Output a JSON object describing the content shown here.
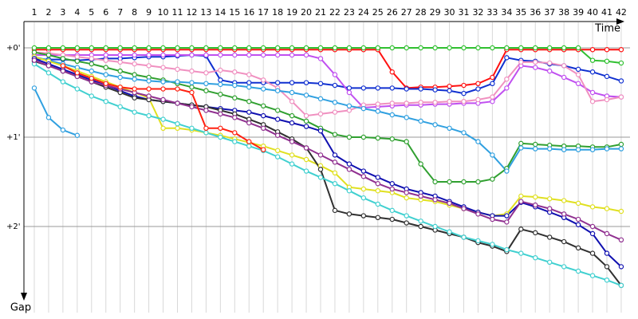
{
  "chart_data": {
    "type": "line",
    "x_label": "Time",
    "y_label": "Gap",
    "y_inverted": true,
    "categories": [
      1,
      2,
      3,
      4,
      5,
      6,
      7,
      8,
      9,
      10,
      11,
      12,
      13,
      14,
      15,
      16,
      17,
      18,
      19,
      20,
      21,
      22,
      23,
      24,
      25,
      26,
      27,
      28,
      29,
      30,
      31,
      32,
      33,
      34,
      35,
      36,
      37,
      38,
      39,
      40,
      41,
      42
    ],
    "ylim": [
      -0.3,
      2.8
    ],
    "yticks": [
      {
        "value": 0,
        "label": "+0'"
      },
      {
        "value": 1,
        "label": "+1'"
      },
      {
        "value": 2,
        "label": "+2'"
      }
    ],
    "grid": true,
    "series": [
      {
        "color": "#ff1010",
        "values": [
          0.02,
          0.02,
          0.02,
          0.02,
          0.02,
          0.02,
          0.02,
          0.02,
          0.02,
          0.02,
          0.02,
          0.02,
          0.02,
          0.02,
          0.02,
          0.02,
          0.02,
          0.02,
          0.02,
          0.02,
          0.02,
          0.02,
          0.02,
          0.02,
          0.02,
          0.27,
          0.45,
          0.44,
          0.44,
          0.43,
          0.42,
          0.4,
          0.33,
          0.02,
          0.02,
          0.02,
          0.02,
          0.02,
          0.02,
          0.02,
          0.02,
          0.02
        ]
      },
      {
        "color": "#30c030",
        "values": [
          0,
          0,
          0,
          0,
          0,
          0,
          0,
          0,
          0,
          0,
          0,
          0,
          0,
          0,
          0,
          0,
          0,
          0,
          0,
          0,
          0,
          0,
          0,
          0,
          0,
          0,
          0,
          0,
          0,
          0,
          0,
          0,
          0,
          0,
          0,
          0,
          0,
          0,
          0,
          0.14,
          0.15,
          0.17
        ]
      },
      {
        "color": "#1030d0",
        "values": [
          0.12,
          0.13,
          0.13,
          0.14,
          0.13,
          0.12,
          0.12,
          0.11,
          0.1,
          0.1,
          0.09,
          0.08,
          0.09,
          0.36,
          0.39,
          0.39,
          0.39,
          0.39,
          0.39,
          0.39,
          0.4,
          0.42,
          0.45,
          0.45,
          0.45,
          0.45,
          0.46,
          0.46,
          0.47,
          0.48,
          0.51,
          0.46,
          0.4,
          0.11,
          0.14,
          0.15,
          0.18,
          0.2,
          0.24,
          0.27,
          0.32,
          0.37
        ]
      },
      {
        "color": "#c050f0",
        "values": [
          0.08,
          0.08,
          0.08,
          0.08,
          0.08,
          0.08,
          0.08,
          0.08,
          0.08,
          0.08,
          0.08,
          0.08,
          0.08,
          0.08,
          0.08,
          0.08,
          0.08,
          0.08,
          0.08,
          0.08,
          0.12,
          0.3,
          0.5,
          0.67,
          0.66,
          0.65,
          0.64,
          0.64,
          0.63,
          0.63,
          0.62,
          0.62,
          0.6,
          0.45,
          0.2,
          0.22,
          0.26,
          0.33,
          0.4,
          0.5,
          0.54,
          0.55
        ]
      },
      {
        "color": "#f090c0",
        "values": [
          0.05,
          0.06,
          0.08,
          0.1,
          0.12,
          0.14,
          0.16,
          0.18,
          0.2,
          0.22,
          0.24,
          0.26,
          0.28,
          0.25,
          0.27,
          0.3,
          0.36,
          0.45,
          0.6,
          0.76,
          0.74,
          0.72,
          0.7,
          0.64,
          0.63,
          0.62,
          0.62,
          0.61,
          0.61,
          0.6,
          0.6,
          0.58,
          0.55,
          0.35,
          0.16,
          0.16,
          0.17,
          0.2,
          0.3,
          0.6,
          0.58,
          0.55
        ]
      },
      {
        "color": "#30a030",
        "values": [
          0.05,
          0.08,
          0.12,
          0.15,
          0.18,
          0.22,
          0.26,
          0.3,
          0.33,
          0.36,
          0.4,
          0.44,
          0.48,
          0.52,
          0.56,
          0.6,
          0.65,
          0.7,
          0.76,
          0.82,
          0.9,
          0.97,
          1.0,
          1.0,
          1.01,
          1.02,
          1.05,
          1.3,
          1.5,
          1.5,
          1.5,
          1.5,
          1.47,
          1.35,
          1.07,
          1.08,
          1.09,
          1.1,
          1.1,
          1.11,
          1.11,
          1.08
        ]
      },
      {
        "color": "#30a0e0",
        "values": [
          0.1,
          0.14,
          0.18,
          0.22,
          0.26,
          0.3,
          0.33,
          0.35,
          0.37,
          0.38,
          0.38,
          0.39,
          0.4,
          0.41,
          0.42,
          0.44,
          0.46,
          0.48,
          0.5,
          0.53,
          0.57,
          0.61,
          0.65,
          0.68,
          0.71,
          0.75,
          0.78,
          0.82,
          0.86,
          0.9,
          0.95,
          1.05,
          1.2,
          1.38,
          1.12,
          1.13,
          1.13,
          1.14,
          1.14,
          1.14,
          1.13,
          1.13
        ]
      },
      {
        "color": "#e0e020",
        "values": [
          0.1,
          0.15,
          0.2,
          0.26,
          0.32,
          0.38,
          0.44,
          0.5,
          0.56,
          0.9,
          0.9,
          0.92,
          0.95,
          0.98,
          1.02,
          1.06,
          1.1,
          1.15,
          1.2,
          1.25,
          1.32,
          1.4,
          1.56,
          1.58,
          1.6,
          1.62,
          1.68,
          1.7,
          1.72,
          1.76,
          1.8,
          1.84,
          1.88,
          1.86,
          1.66,
          1.67,
          1.69,
          1.71,
          1.74,
          1.78,
          1.8,
          1.83
        ]
      },
      {
        "color": "#1010b0",
        "values": [
          0.12,
          0.18,
          0.24,
          0.3,
          0.36,
          0.42,
          0.48,
          0.54,
          0.58,
          0.6,
          0.62,
          0.64,
          0.66,
          0.68,
          0.7,
          0.72,
          0.76,
          0.8,
          0.84,
          0.88,
          0.93,
          1.2,
          1.3,
          1.38,
          1.45,
          1.52,
          1.58,
          1.62,
          1.66,
          1.72,
          1.78,
          1.84,
          1.88,
          1.88,
          1.73,
          1.78,
          1.84,
          1.9,
          1.98,
          2.08,
          2.3,
          2.45
        ]
      },
      {
        "color": "#303030",
        "values": [
          0.15,
          0.2,
          0.26,
          0.32,
          0.38,
          0.44,
          0.5,
          0.56,
          0.58,
          0.6,
          0.62,
          0.64,
          0.66,
          0.7,
          0.74,
          0.8,
          0.86,
          0.94,
          1.02,
          1.12,
          1.36,
          1.82,
          1.86,
          1.88,
          1.9,
          1.92,
          1.96,
          2.0,
          2.04,
          2.08,
          2.12,
          2.18,
          2.22,
          2.28,
          2.03,
          2.07,
          2.12,
          2.17,
          2.24,
          2.3,
          2.45,
          2.66
        ]
      },
      {
        "color": "#40d0d0",
        "values": [
          0.18,
          0.28,
          0.38,
          0.46,
          0.54,
          0.6,
          0.66,
          0.72,
          0.76,
          0.8,
          0.85,
          0.9,
          0.95,
          1.0,
          1.05,
          1.1,
          1.15,
          1.22,
          1.3,
          1.38,
          1.45,
          1.52,
          1.6,
          1.68,
          1.75,
          1.82,
          1.88,
          1.94,
          2.0,
          2.06,
          2.12,
          2.16,
          2.2,
          2.26,
          2.3,
          2.35,
          2.4,
          2.45,
          2.5,
          2.55,
          2.6,
          2.66
        ]
      },
      {
        "color": "#903090",
        "values": [
          0.14,
          0.2,
          0.26,
          0.32,
          0.38,
          0.42,
          0.46,
          0.5,
          0.54,
          0.58,
          0.62,
          0.66,
          0.7,
          0.74,
          0.78,
          0.84,
          0.9,
          0.98,
          1.05,
          1.12,
          1.2,
          1.28,
          1.36,
          1.44,
          1.52,
          1.58,
          1.62,
          1.66,
          1.7,
          1.74,
          1.8,
          1.86,
          1.92,
          1.95,
          1.72,
          1.76,
          1.8,
          1.86,
          1.92,
          2.0,
          2.08,
          2.15
        ]
      },
      {
        "color": "#30a0e0",
        "values": [
          0.45,
          0.78,
          0.92,
          0.98,
          null,
          null,
          null,
          null,
          null,
          null,
          null,
          null,
          null,
          null,
          null,
          null,
          null,
          null,
          null,
          null,
          null,
          null,
          null,
          null,
          null,
          null,
          null,
          null,
          null,
          null,
          null,
          null,
          null,
          null,
          null,
          null,
          null,
          null,
          null,
          null,
          null,
          null
        ]
      },
      {
        "color": "#ff2010",
        "values": [
          null,
          null,
          0.2,
          0.28,
          0.34,
          0.4,
          0.44,
          0.46,
          0.46,
          0.46,
          0.46,
          0.5,
          0.9,
          0.9,
          0.95,
          1.05,
          1.14,
          null,
          null,
          null,
          null,
          null,
          null,
          null,
          null,
          null,
          null,
          null,
          null,
          null,
          null,
          null,
          null,
          null,
          null,
          null,
          null,
          null,
          null,
          null,
          null,
          null
        ]
      }
    ]
  }
}
